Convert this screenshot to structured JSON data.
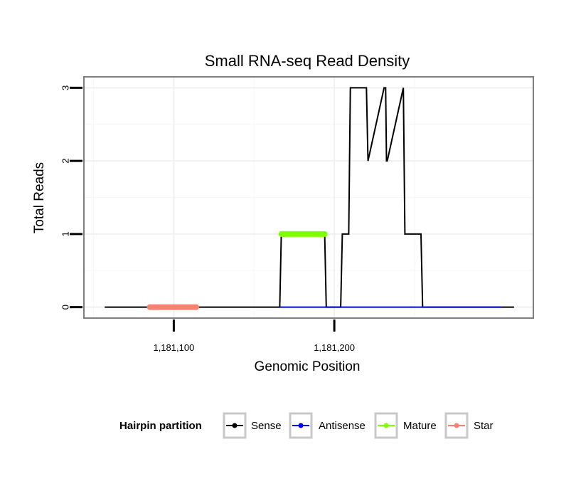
{
  "chart_data": {
    "type": "line",
    "title": "Small RNA-seq Read Density",
    "xlabel": "Genomic Position",
    "ylabel": "Total Reads",
    "xlim": [
      1181044,
      1181324
    ],
    "ylim": [
      -0.15,
      3.15
    ],
    "x_ticks": [
      1181100,
      1181200
    ],
    "x_tick_labels": [
      "1,181,100",
      "1,181,200"
    ],
    "y_ticks": [
      0,
      1,
      2,
      3
    ],
    "y_tick_labels": [
      "0",
      "1",
      "2",
      "3"
    ],
    "grid": true,
    "series": [
      {
        "name": "Sense",
        "color": "#000000",
        "x": [
          1181057,
          1181166,
          1181167,
          1181194,
          1181195,
          1181204,
          1181205,
          1181209,
          1181210,
          1181220,
          1181221,
          1181231,
          1181232,
          1181232.5,
          1181233,
          1181243,
          1181244,
          1181254,
          1181255,
          1181303,
          1181304,
          1181312
        ],
        "y": [
          0,
          0,
          1,
          1,
          0,
          0,
          1,
          1,
          3,
          3,
          2,
          3,
          3,
          2,
          2,
          3,
          1,
          1,
          0,
          0,
          0,
          0
        ]
      },
      {
        "name": "Antisense",
        "color": "#0000ff",
        "x": [
          1181166,
          1181304
        ],
        "y": [
          0,
          0
        ]
      },
      {
        "name": "Mature",
        "color": "#7fff00",
        "x": [
          1181167,
          1181194
        ],
        "y": [
          1,
          1
        ]
      },
      {
        "name": "Star",
        "color": "#fa8072",
        "x": [
          1181085,
          1181114
        ],
        "y": [
          0,
          0
        ]
      }
    ],
    "legend": {
      "title": "Hairpin partition",
      "position": "bottom",
      "entries": [
        "Sense",
        "Antisense",
        "Mature",
        "Star"
      ]
    }
  }
}
